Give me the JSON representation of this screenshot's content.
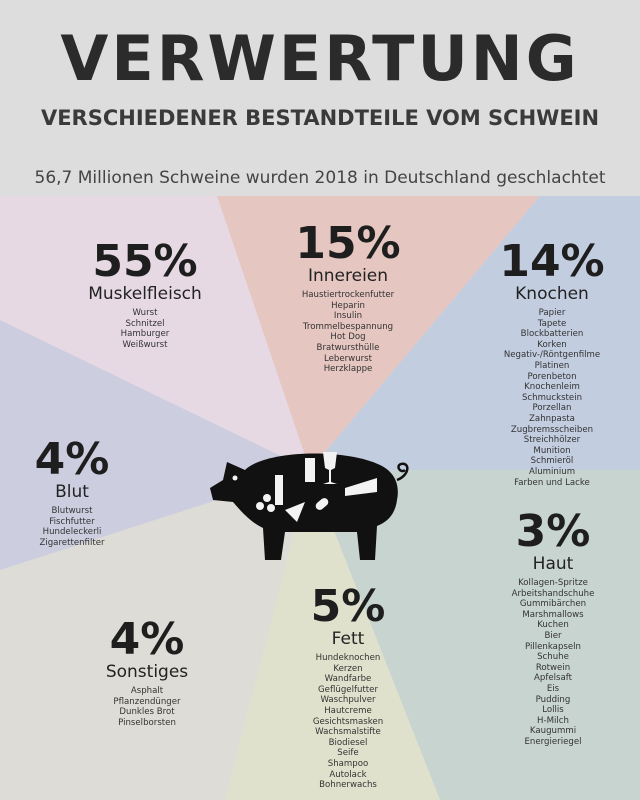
{
  "header": {
    "title": "VERWERTUNG",
    "subtitle": "VERSCHIEDENER BESTANDTEILE VOM SCHWEIN",
    "statement": "56,7 Millionen Schweine wurden 2018 in Deutschland geschlachtet"
  },
  "colors": {
    "muskelfleisch": "#e6d9e4",
    "innereien": "#e5c6c1",
    "knochen": "#c3cde0",
    "haut": "#c8d4cf",
    "fett": "#e0e1cd",
    "sonstiges": "#dddcd6",
    "blut": "#cdcde0",
    "top": "#dedddd"
  },
  "groups": [
    {
      "id": "muskelfleisch",
      "percent": "55%",
      "name": "Muskelfleisch",
      "items": [
        "Wurst",
        "Schnitzel",
        "Hamburger",
        "Weißwurst"
      ]
    },
    {
      "id": "innereien",
      "percent": "15%",
      "name": "Innereien",
      "items": [
        "Haustiertrockenfutter",
        "Heparin",
        "Insulin",
        "Trommelbespannung",
        "Hot Dog",
        "Bratwursthülle",
        "Leberwurst",
        "Herzklappe"
      ]
    },
    {
      "id": "knochen",
      "percent": "14%",
      "name": "Knochen",
      "items": [
        "Papier",
        "Tapete",
        "Blockbatterien",
        "Korken",
        "Negativ-/Röntgenfilme",
        "Platinen",
        "Porenbeton",
        "Knochenleim",
        "Schmuckstein",
        "Porzellan",
        "Zahnpasta",
        "Zugbremsscheiben",
        "Streichhölzer",
        "Munition",
        "Schmieröl",
        "Aluminium",
        "Farben und Lacke"
      ]
    },
    {
      "id": "blut",
      "percent": "4%",
      "name": "Blut",
      "items": [
        "Blutwurst",
        "Fischfutter",
        "Hundeleckerli",
        "Zigarettenfilter"
      ]
    },
    {
      "id": "haut",
      "percent": "3%",
      "name": "Haut",
      "items": [
        "Kollagen-Spritze",
        "Arbeitshandschuhe",
        "Gummibärchen",
        "Marshmallows",
        "Kuchen",
        "Bier",
        "Pillenkapseln",
        "Schuhe",
        "Rotwein",
        "Apfelsaft",
        "Eis",
        "Pudding",
        "Lollis",
        "H-Milch",
        "Kaugummi",
        "Energieriegel"
      ]
    },
    {
      "id": "fett",
      "percent": "5%",
      "name": "Fett",
      "items": [
        "Hundeknochen",
        "Kerzen",
        "Wandfarbe",
        "Geflügelfutter",
        "Waschpulver",
        "Hautcreme",
        "Gesichtsmasken",
        "Wachsmalstifte",
        "Biodiesel",
        "Seife",
        "Shampoo",
        "Autolack",
        "Bohnerwachs"
      ]
    },
    {
      "id": "sonstiges",
      "percent": "4%",
      "name": "Sonstiges",
      "items": [
        "Asphalt",
        "Pflanzendünger",
        "Dunkles Brot",
        "Pinselborsten"
      ]
    }
  ]
}
